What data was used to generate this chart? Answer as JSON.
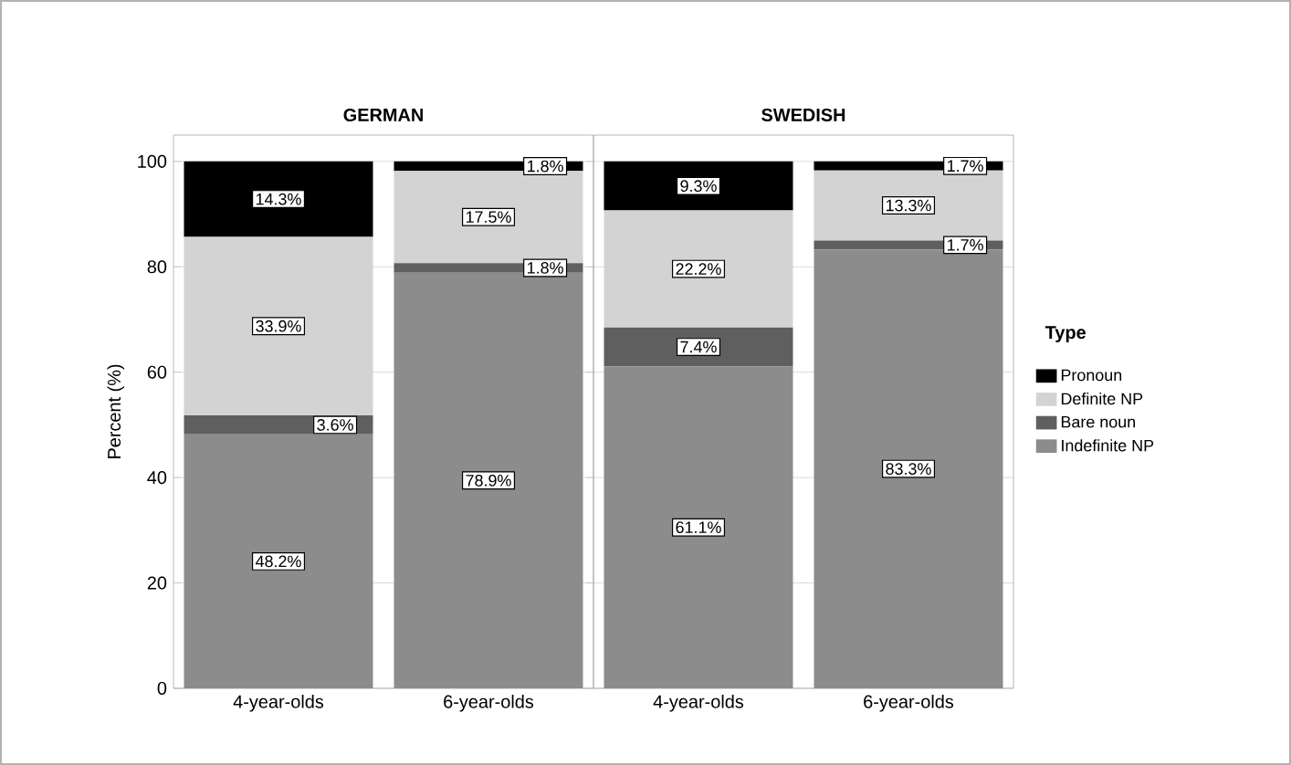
{
  "chart_data": [
    {
      "type": "bar",
      "stacked": true,
      "title": "GERMAN",
      "ylabel": "Percent (%)",
      "categories": [
        "4-year-olds",
        "6-year-olds"
      ],
      "ylim": [
        0,
        105
      ],
      "yticks": [
        0,
        20,
        40,
        60,
        80,
        100
      ],
      "grid": "y",
      "series": [
        {
          "color": "#8c8c8c",
          "values": [
            48.2,
            78.9
          ],
          "value_labels": [
            "48.2%",
            "78.9%"
          ]
        },
        {
          "color": "#5f5f5f",
          "values": [
            3.6,
            1.8
          ],
          "value_labels": [
            "3.6%",
            "1.8%"
          ]
        },
        {
          "color": "#d3d3d3",
          "values": [
            33.9,
            17.5
          ],
          "value_labels": [
            "33.9%",
            "17.5%"
          ]
        },
        {
          "color": "#000000",
          "values": [
            14.3,
            1.8
          ],
          "value_labels": [
            "14.3%",
            "1.8%"
          ]
        }
      ]
    },
    {
      "type": "bar",
      "stacked": true,
      "title": "SWEDISH",
      "legend_title": "Type",
      "legend": "right",
      "tick_labels": "x",
      "categories": [
        "4-year-olds",
        "6-year-olds"
      ],
      "ylim": [
        0,
        105
      ],
      "yticks": [
        0,
        20,
        40,
        60,
        80,
        100
      ],
      "grid": "y",
      "series": [
        {
          "name": "Indefinite NP",
          "color": "#8c8c8c",
          "values": [
            61.1,
            83.3
          ],
          "value_labels": [
            "61.1%",
            "83.3%"
          ]
        },
        {
          "name": "Bare noun",
          "color": "#5f5f5f",
          "values": [
            7.4,
            1.7
          ],
          "value_labels": [
            "7.4%",
            "1.7%"
          ]
        },
        {
          "name": "Definite NP",
          "color": "#d3d3d3",
          "values": [
            22.2,
            13.3
          ],
          "value_labels": [
            "22.2%",
            "13.3%"
          ]
        },
        {
          "name": "Pronoun",
          "color": "#000000",
          "values": [
            9.3,
            1.7
          ],
          "value_labels": [
            "9.3%",
            "1.7%"
          ]
        }
      ]
    }
  ]
}
